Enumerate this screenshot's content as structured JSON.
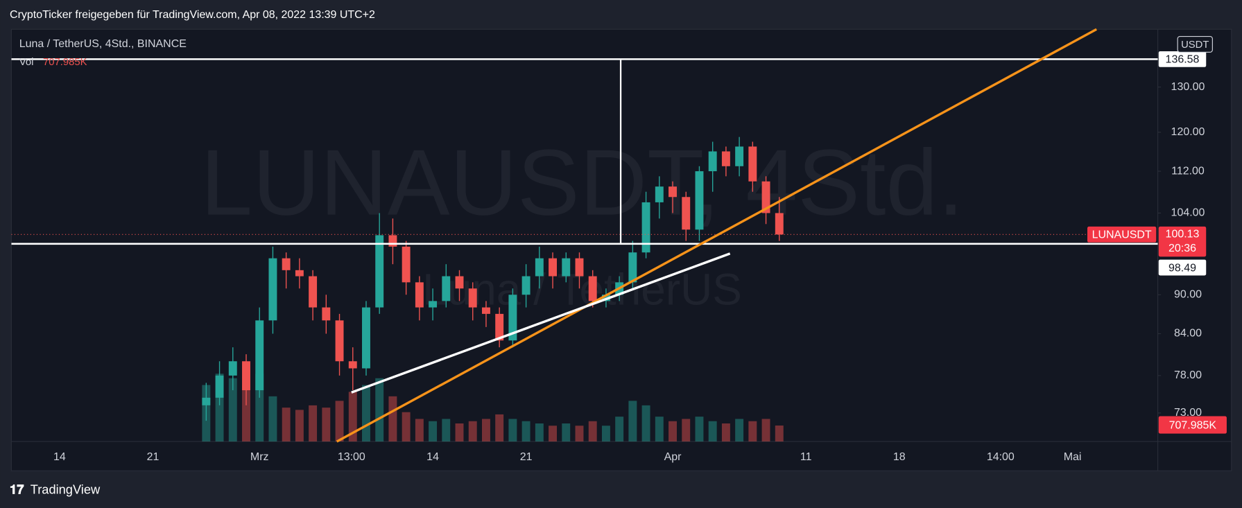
{
  "header": {
    "share": "CryptoTicker freigegeben für TradingView.com, Apr 08, 2022 13:39 UTC+2",
    "symbol": "Luna / TetherUS, 4Std., BINANCE"
  },
  "footer": "TradingView",
  "chart_data": {
    "type": "candlestick",
    "watermark": [
      "LUNAUSDT, 4Std.",
      "Luna / TetherUS"
    ],
    "currency": "USDT",
    "symbol_tag": "LUNAUSDT",
    "bar_countdown": "20:36",
    "log_scale": true,
    "grid": false,
    "up_color": "#26a69a",
    "down_color": "#ef5350",
    "xlim": [
      -3.62,
      82.4
    ],
    "ylim": [
      69.4,
      144
    ],
    "xticks": [
      {
        "value": 0,
        "label": "14"
      },
      {
        "value": 7,
        "label": "21"
      },
      {
        "value": 15,
        "label": "Mrz"
      },
      {
        "value": 21.9,
        "label": "13:00"
      },
      {
        "value": 28,
        "label": "14"
      },
      {
        "value": 35,
        "label": "21"
      },
      {
        "value": 46,
        "label": "Apr"
      },
      {
        "value": 56,
        "label": "11"
      },
      {
        "value": 63,
        "label": "18"
      },
      {
        "value": 70.6,
        "label": "14:00"
      },
      {
        "value": 76,
        "label": "Mai"
      }
    ],
    "yticks": [
      {
        "value": 73,
        "label": "73.00"
      },
      {
        "value": 78,
        "label": "78.00"
      },
      {
        "value": 84,
        "label": "84.00"
      },
      {
        "value": 90,
        "label": "90.00"
      },
      {
        "value": 104,
        "label": "104.00"
      },
      {
        "value": 112,
        "label": "112.00"
      },
      {
        "value": 120,
        "label": "120.00"
      },
      {
        "value": 130,
        "label": "130.00"
      }
    ],
    "candles": {
      "x": [
        11,
        12,
        13,
        14,
        15,
        16,
        17,
        18,
        19,
        20,
        21,
        22,
        23,
        24,
        25,
        26,
        27,
        28,
        29,
        30,
        31,
        32,
        33,
        34,
        35,
        36,
        37,
        38,
        39,
        40,
        41,
        42,
        43,
        44,
        45,
        46,
        47,
        48,
        49,
        50,
        51,
        52,
        53,
        54
      ],
      "open": [
        74,
        75,
        78,
        80,
        76,
        86,
        96,
        94,
        93,
        88,
        86,
        80,
        79,
        88,
        100,
        98,
        92,
        88,
        89,
        93,
        91,
        88,
        87,
        83,
        90,
        93,
        96,
        93,
        96,
        93,
        89,
        90,
        92,
        97,
        106,
        109,
        107,
        101,
        112,
        116,
        113,
        117,
        110,
        104
      ],
      "high": [
        77,
        80,
        82,
        81,
        88,
        98,
        97,
        96,
        94,
        90,
        87,
        82,
        89,
        104,
        103,
        99,
        93,
        91,
        95,
        94,
        92,
        89,
        88,
        91,
        95,
        98,
        97,
        97,
        97,
        94,
        91,
        93,
        99,
        108,
        111,
        110,
        108,
        113,
        118,
        117,
        119,
        118,
        111,
        107
      ],
      "low": [
        72,
        74,
        76,
        74,
        75,
        84,
        91,
        91,
        86,
        84,
        78,
        76,
        78,
        87,
        95,
        90,
        86,
        86,
        88,
        89,
        86,
        85,
        82,
        82,
        88,
        91,
        91,
        92,
        91,
        88,
        88,
        89,
        91,
        96,
        103,
        104,
        99,
        99,
        108,
        111,
        111,
        108,
        102,
        99
      ],
      "close": [
        75,
        78,
        80,
        76,
        86,
        96,
        94,
        93,
        88,
        86,
        80,
        79,
        88,
        100,
        98,
        92,
        88,
        89,
        93,
        91,
        88,
        87,
        83,
        90,
        93,
        96,
        93,
        96,
        93,
        89,
        90,
        92,
        97,
        106,
        109,
        107,
        101,
        112,
        116,
        113,
        117,
        110,
        104,
        100.13
      ]
    },
    "volume": {
      "name": "Vol",
      "ylim": [
        0,
        7000000
      ],
      "values": [
        2500000,
        3000000,
        2800000,
        2500000,
        3000000,
        2000000,
        1500000,
        1400000,
        1600000,
        1500000,
        1800000,
        2200000,
        2500000,
        2800000,
        2000000,
        1300000,
        1000000,
        900000,
        1000000,
        800000,
        900000,
        1000000,
        1200000,
        1000000,
        900000,
        800000,
        700000,
        800000,
        700000,
        900000,
        700000,
        1100000,
        1800000,
        1600000,
        1100000,
        900000,
        1000000,
        1100000,
        900000,
        800000,
        1000000,
        900000,
        1000000,
        707985
      ],
      "current": {
        "value": 707985,
        "label": "707.985K"
      }
    },
    "levels": [
      136.58,
      98.49
    ],
    "measure_x": 42.1,
    "trendlines": [
      {
        "color": "#f7931a",
        "x": [
          20.8,
          77.8
        ],
        "y": [
          69.4,
          144
        ]
      },
      {
        "color": "#ffffff",
        "x": [
          21.9,
          50.3
        ],
        "y": [
          75.7,
          96.8
        ]
      }
    ]
  }
}
